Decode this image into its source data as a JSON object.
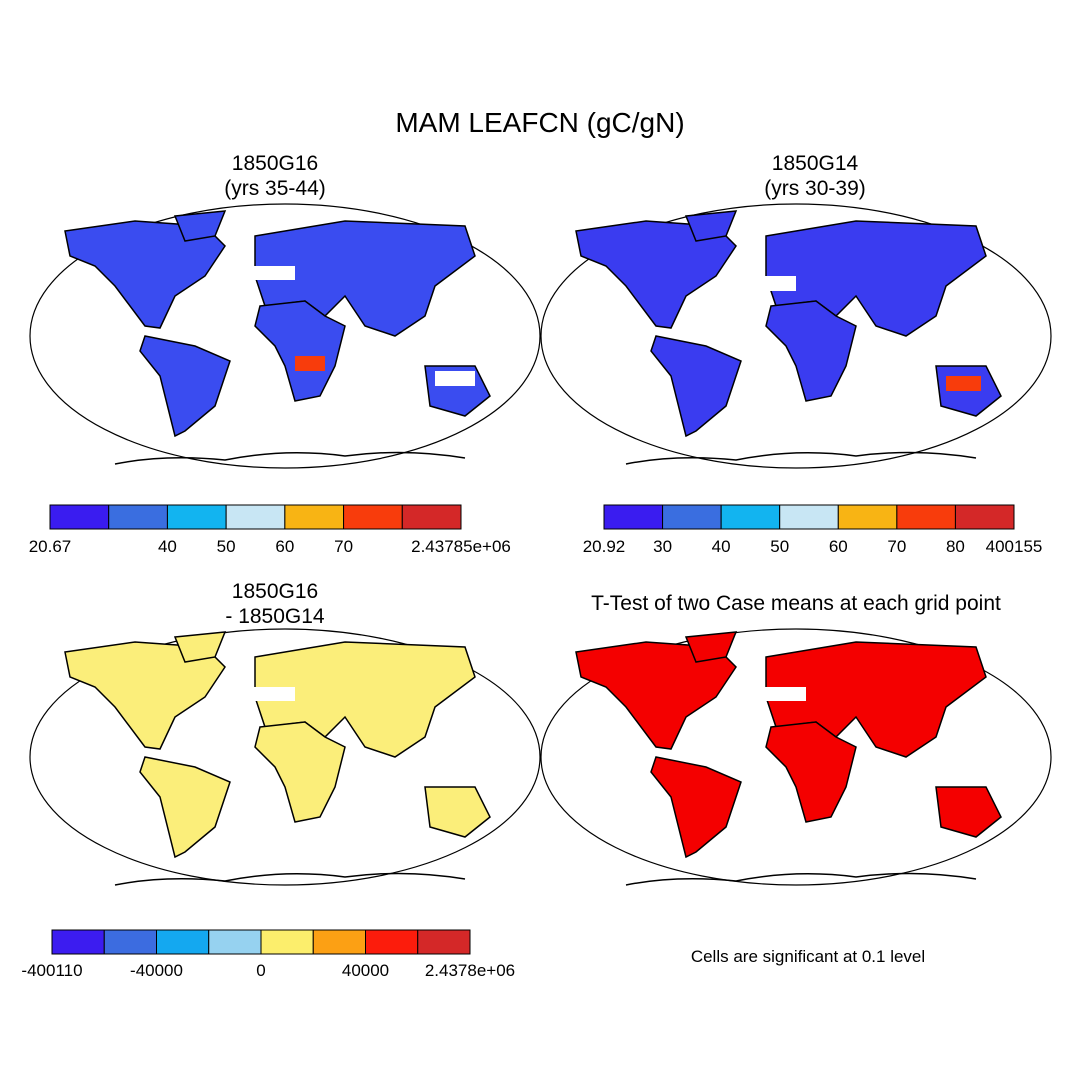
{
  "title": "MAM LEAFCN (gC/gN)",
  "panels": [
    {
      "title": [
        "1850G16",
        "(yrs 35-44)"
      ]
    },
    {
      "title": [
        "1850G14",
        "(yrs 30-39)"
      ]
    },
    {
      "title": [
        "1850G16",
        "- 1850G14"
      ]
    },
    {
      "title": [
        "T-Test of two Case means at each grid point"
      ]
    }
  ],
  "colorbars": [
    {
      "colors": [
        "#3a1cf0",
        "#3a6ee0",
        "#12b4f0",
        "#c8e6f4",
        "#f8b414",
        "#f83c0c",
        "#d42828"
      ],
      "labels": [
        "20.67",
        null,
        "40",
        "50",
        "60",
        "70",
        null,
        "2.43785e+06"
      ]
    },
    {
      "colors": [
        "#3a1cf0",
        "#3a6ee0",
        "#12b4f0",
        "#c8e6f4",
        "#f8b414",
        "#f83c0c",
        "#d42828"
      ],
      "labels": [
        "20.92",
        "30",
        "40",
        "50",
        "60",
        "70",
        "80",
        "400155"
      ]
    },
    {
      "colors": [
        "#3c1cf0",
        "#3c6ce0",
        "#14a8f0",
        "#96d2f0",
        "#fcee6c",
        "#fca014",
        "#fc1c0c",
        "#d42828"
      ],
      "labels": [
        "-400110",
        null,
        "-40000",
        null,
        "0",
        null,
        "40000",
        null,
        "2.4378e+06"
      ]
    }
  ],
  "note": "Cells are significant at 0.1 level"
}
